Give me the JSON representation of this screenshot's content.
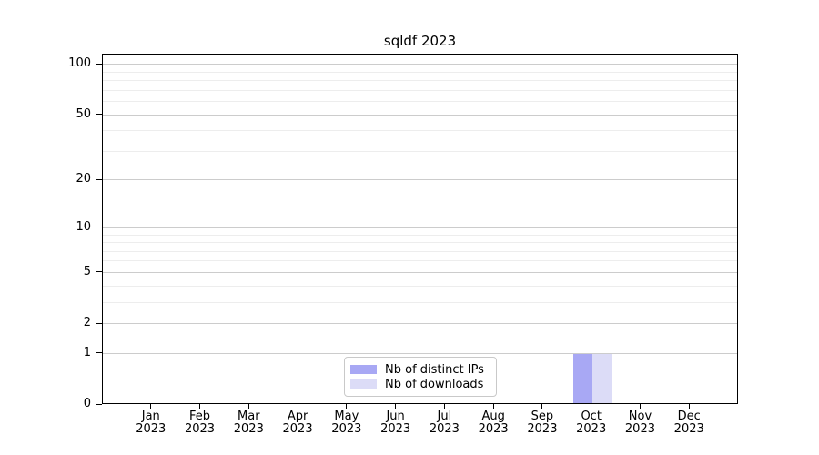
{
  "chart_data": {
    "type": "bar",
    "title": "sqldf 2023",
    "categories": [
      "Jan 2023",
      "Feb 2023",
      "Mar 2023",
      "Apr 2023",
      "May 2023",
      "Jun 2023",
      "Jul 2023",
      "Aug 2023",
      "Sep 2023",
      "Oct 2023",
      "Nov 2023",
      "Dec 2023"
    ],
    "x_tick_labels": [
      "Jan",
      "Feb",
      "Mar",
      "Apr",
      "May",
      "Jun",
      "Jul",
      "Aug",
      "Sep",
      "Oct",
      "Nov",
      "Dec"
    ],
    "x_tick_sublabel": "2023",
    "series": [
      {
        "name": "Nb of distinct IPs",
        "color": "#a8a8f4",
        "values": [
          0,
          0,
          0,
          0,
          0,
          0,
          0,
          0,
          0,
          1,
          0,
          0
        ]
      },
      {
        "name": "Nb of downloads",
        "color": "#dcdcf7",
        "values": [
          0,
          0,
          0,
          0,
          0,
          0,
          0,
          0,
          0,
          1,
          0,
          0
        ]
      }
    ],
    "y_scale": "log10(1+y)",
    "ylim": [
      0,
      115
    ],
    "y_major_ticks": [
      0,
      1,
      2,
      5,
      10,
      20,
      50,
      100
    ],
    "y_tick_labels": [
      "0",
      "1",
      "2",
      "5",
      "10",
      "20",
      "50",
      "100"
    ],
    "y_minor_gridlines": [
      3,
      4,
      6,
      7,
      8,
      9,
      30,
      40,
      60,
      70,
      80,
      90
    ],
    "grid": {
      "major_color": "#cccccc",
      "minor_color": "#ededed"
    },
    "legend": {
      "position": "bottom-center",
      "entries": [
        "Nb of distinct IPs",
        "Nb of downloads"
      ]
    },
    "axis_color": "#000000",
    "background": "#ffffff"
  }
}
